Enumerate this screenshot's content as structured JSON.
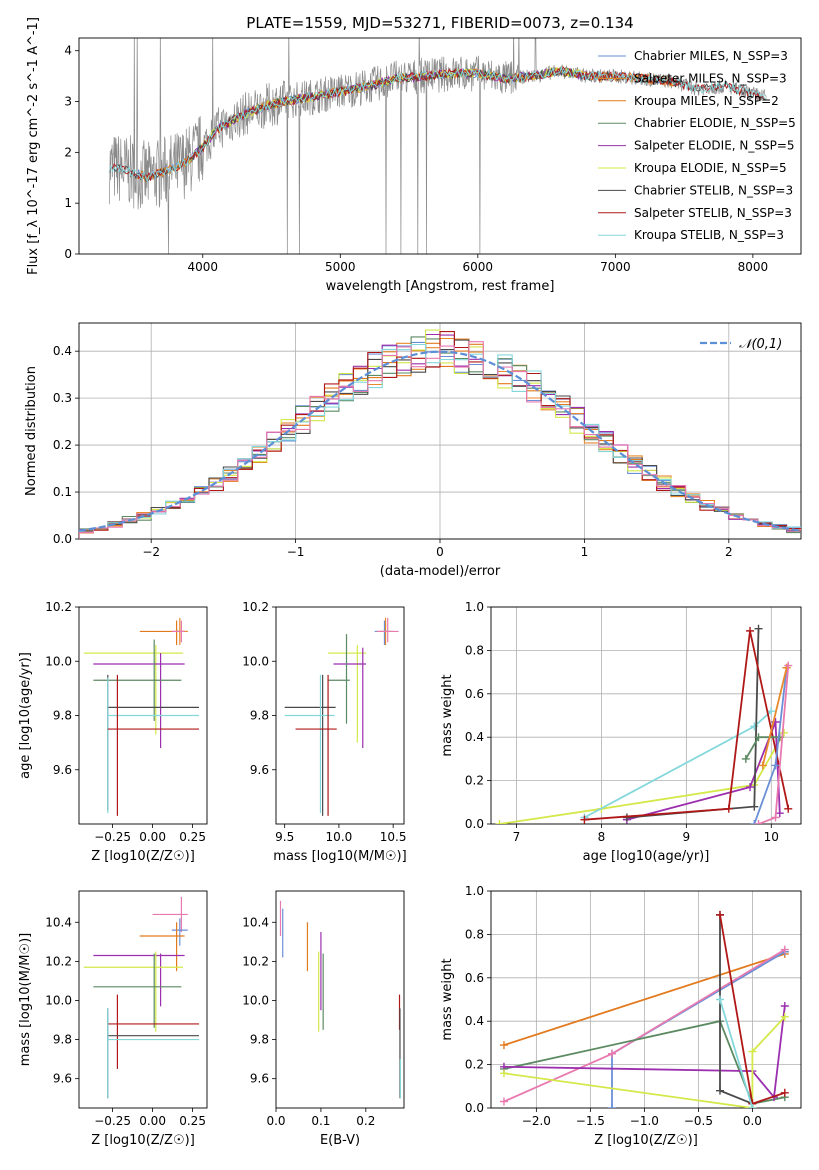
{
  "figure_title": "PLATE=1559, MJD=53271, FIBERID=0073, z=0.134",
  "palette": {
    "chabrier_miles": "#6a8fd6",
    "salpeter_miles": "#e8892c",
    "kroupa_miles": "#e27a1e",
    "chabrier_elodie": "#5c8a62",
    "salpeter_elodie": "#9b2fae",
    "kroupa_elodie": "#d4e84a",
    "chabrier_stelib": "#4a4a4a",
    "salpeter_stelib": "#b01818",
    "kroupa_stelib": "#84d8dc",
    "pink": "#e87ab0",
    "spectrum_gray": "#8a8a8a",
    "normal_curve": "#5b8fd6"
  },
  "chart_data": [
    {
      "id": "spectrum",
      "type": "line",
      "title": "",
      "xlabel": "wavelength [Angstrom, rest frame]",
      "ylabel": "Flux [f_λ 10^-17 erg cm^-2 s^-1 A^-1]",
      "xlim": [
        3100,
        8350
      ],
      "ylim": [
        0,
        4.25
      ],
      "xticks": [
        4000,
        5000,
        6000,
        7000,
        8000
      ],
      "yticks": [
        0,
        1,
        2,
        3,
        4
      ],
      "grid": false,
      "legend_position": "right",
      "legend": [
        {
          "label": "Chabrier MILES, N_SSP=3",
          "color_key": "chabrier_miles"
        },
        {
          "label": "Salpeter MILES, N_SSP=3",
          "color_key": "salpeter_miles"
        },
        {
          "label": "Kroupa MILES, N_SSP=2",
          "color_key": "kroupa_miles"
        },
        {
          "label": "Chabrier ELODIE, N_SSP=5",
          "color_key": "chabrier_elodie"
        },
        {
          "label": "Salpeter ELODIE, N_SSP=5",
          "color_key": "salpeter_elodie"
        },
        {
          "label": "Kroupa ELODIE, N_SSP=5",
          "color_key": "kroupa_elodie"
        },
        {
          "label": "Chabrier STELIB, N_SSP=3",
          "color_key": "chabrier_stelib"
        },
        {
          "label": "Salpeter STELIB, N_SSP=3",
          "color_key": "salpeter_stelib"
        },
        {
          "label": "Kroupa STELIB, N_SSP=3",
          "color_key": "kroupa_stelib"
        }
      ],
      "continuum": {
        "x": [
          3320,
          3400,
          3500,
          3600,
          3700,
          3800,
          3900,
          4000,
          4100,
          4200,
          4300,
          4400,
          4500,
          4600,
          4700,
          4800,
          5000,
          5200,
          5400,
          5600,
          5800,
          6000,
          6200,
          6400,
          6600,
          6800,
          7000,
          7200,
          7400,
          7600,
          7800,
          8000,
          8100
        ],
        "y": [
          1.7,
          1.68,
          1.6,
          1.5,
          1.6,
          1.7,
          1.85,
          2.1,
          2.45,
          2.6,
          2.75,
          2.85,
          2.95,
          3.0,
          3.05,
          3.1,
          3.2,
          3.3,
          3.45,
          3.5,
          3.55,
          3.55,
          3.45,
          3.5,
          3.6,
          3.5,
          3.5,
          3.45,
          3.4,
          3.25,
          3.3,
          3.15,
          3.1
        ]
      }
    },
    {
      "id": "residuals",
      "type": "line",
      "title": "",
      "xlabel": "(data-model)/error",
      "ylabel": "Normed distribution",
      "xlim": [
        -2.5,
        2.5
      ],
      "ylim": [
        0,
        0.46
      ],
      "xticks": [
        -2,
        -1,
        0,
        1,
        2
      ],
      "yticks": [
        0.0,
        0.1,
        0.2,
        0.3,
        0.4
      ],
      "grid": true,
      "legend_position": "top-right",
      "legend": [
        {
          "label": "𝒩(0,1)",
          "style": "dashed",
          "color_key": "normal_curve"
        }
      ],
      "bin_edges": [
        -2.5,
        2.5
      ],
      "n_bins": 50
    },
    {
      "id": "age_vs_Z",
      "type": "scatter",
      "xlabel": "Z [log10(Z/Z☉)]",
      "ylabel": "age  [log10(age/yr)]",
      "xlim": [
        -0.46,
        0.34
      ],
      "ylim": [
        9.4,
        10.2
      ],
      "xticks": [
        -0.25,
        0.0,
        0.25
      ],
      "xticklabels": [
        "−0.25",
        "0.00",
        "0.25"
      ],
      "yticks": [
        9.6,
        9.8,
        10.0,
        10.2
      ],
      "yticklabels": [
        "9.6",
        "9.8",
        "10.0",
        "10.2"
      ],
      "points": [
        {
          "x": 0.17,
          "y": 10.11,
          "xlo": 0.14,
          "xhi": 0.22,
          "ylo": 10.06,
          "yhi": 10.16,
          "color_key": "salpeter_miles"
        },
        {
          "x": 0.15,
          "y": 10.11,
          "xlo": -0.08,
          "xhi": 0.2,
          "ylo": 10.06,
          "yhi": 10.15,
          "color_key": "kroupa_miles"
        },
        {
          "x": 0.18,
          "y": 10.11,
          "xlo": 0.12,
          "xhi": 0.2,
          "ylo": 10.07,
          "yhi": 10.15,
          "color_key": "pink"
        },
        {
          "x": 0.02,
          "y": 10.03,
          "xlo": -0.43,
          "xhi": 0.19,
          "ylo": 9.73,
          "yhi": 10.06,
          "color_key": "kroupa_elodie"
        },
        {
          "x": 0.05,
          "y": 9.99,
          "xlo": -0.37,
          "xhi": 0.2,
          "ylo": 9.68,
          "yhi": 10.03,
          "color_key": "salpeter_elodie"
        },
        {
          "x": 0.01,
          "y": 9.93,
          "xlo": -0.37,
          "xhi": 0.18,
          "ylo": 9.78,
          "yhi": 10.08,
          "color_key": "chabrier_elodie"
        },
        {
          "x": -0.28,
          "y": 9.83,
          "xlo": -0.28,
          "xhi": 0.29,
          "ylo": 9.45,
          "yhi": 9.95,
          "color_key": "chabrier_stelib"
        },
        {
          "x": -0.28,
          "y": 9.8,
          "xlo": -0.28,
          "xhi": 0.29,
          "ylo": 9.44,
          "yhi": 9.94,
          "color_key": "kroupa_stelib"
        },
        {
          "x": -0.22,
          "y": 9.75,
          "xlo": -0.28,
          "xhi": 0.29,
          "ylo": 9.43,
          "yhi": 9.95,
          "color_key": "salpeter_stelib"
        }
      ]
    },
    {
      "id": "age_vs_mass",
      "type": "scatter",
      "xlabel": "mass [log10(M/M☉)]",
      "ylabel": "",
      "xlim": [
        9.42,
        10.6
      ],
      "ylim": [
        9.4,
        10.2
      ],
      "xticks": [
        9.5,
        10.0,
        10.5
      ],
      "xticklabels": [
        "9.5",
        "10.0",
        "10.5"
      ],
      "yticks": [
        9.6,
        9.8,
        10.0,
        10.2
      ],
      "yticklabels": [
        "9.6",
        "9.8",
        "10.0",
        "10.2"
      ],
      "points": [
        {
          "x": 10.42,
          "y": 10.11,
          "xlo": 10.33,
          "xhi": 10.48,
          "ylo": 10.06,
          "yhi": 10.15,
          "color_key": "chabrier_miles"
        },
        {
          "x": 10.43,
          "y": 10.11,
          "xlo": 10.35,
          "xhi": 10.5,
          "ylo": 10.06,
          "yhi": 10.16,
          "color_key": "salpeter_miles"
        },
        {
          "x": 10.45,
          "y": 10.11,
          "xlo": 10.35,
          "xhi": 10.55,
          "ylo": 10.07,
          "yhi": 10.16,
          "color_key": "pink"
        },
        {
          "x": 10.17,
          "y": 10.03,
          "xlo": 9.9,
          "xhi": 10.25,
          "ylo": 9.7,
          "yhi": 10.06,
          "color_key": "kroupa_elodie"
        },
        {
          "x": 10.22,
          "y": 9.99,
          "xlo": 9.95,
          "xhi": 10.25,
          "ylo": 9.68,
          "yhi": 10.05,
          "color_key": "salpeter_elodie"
        },
        {
          "x": 10.07,
          "y": 9.93,
          "xlo": 9.9,
          "xhi": 10.1,
          "ylo": 9.77,
          "yhi": 10.1,
          "color_key": "chabrier_elodie"
        },
        {
          "x": 9.85,
          "y": 9.83,
          "xlo": 9.5,
          "xhi": 9.97,
          "ylo": 9.43,
          "yhi": 9.95,
          "color_key": "chabrier_stelib"
        },
        {
          "x": 9.83,
          "y": 9.8,
          "xlo": 9.5,
          "xhi": 9.96,
          "ylo": 9.44,
          "yhi": 9.95,
          "color_key": "kroupa_stelib"
        },
        {
          "x": 9.9,
          "y": 9.75,
          "xlo": 9.6,
          "xhi": 9.98,
          "ylo": 9.43,
          "yhi": 9.95,
          "color_key": "salpeter_stelib"
        }
      ]
    },
    {
      "id": "weight_vs_age",
      "type": "line",
      "xlabel": "age  [log10(age/yr)]",
      "ylabel": "mass weight",
      "xlim": [
        6.7,
        10.35
      ],
      "ylim": [
        0,
        1.0
      ],
      "xticks": [
        7,
        8,
        9,
        10
      ],
      "yticks": [
        0.0,
        0.2,
        0.4,
        0.6,
        0.8,
        1.0
      ],
      "grid": true,
      "series": [
        {
          "color_key": "kroupa_elodie",
          "x": [
            6.8,
            8.0,
            9.8,
            10.15
          ],
          "y": [
            0.0,
            0.07,
            0.18,
            0.42
          ]
        },
        {
          "color_key": "kroupa_stelib",
          "x": [
            7.8,
            9.8,
            10.0
          ],
          "y": [
            0.03,
            0.45,
            0.52
          ]
        },
        {
          "color_key": "salpeter_elodie",
          "x": [
            8.3,
            9.75,
            10.05,
            10.1
          ],
          "y": [
            0.02,
            0.17,
            0.47,
            0.05
          ]
        },
        {
          "color_key": "chabrier_stelib",
          "x": [
            8.3,
            9.8,
            9.85
          ],
          "y": [
            0.03,
            0.08,
            0.9
          ]
        },
        {
          "color_key": "salpeter_stelib",
          "x": [
            7.8,
            9.5,
            9.75,
            10.2
          ],
          "y": [
            0.02,
            0.07,
            0.89,
            0.07
          ]
        },
        {
          "color_key": "chabrier_elodie",
          "x": [
            9.7,
            9.85,
            10.1
          ],
          "y": [
            0.3,
            0.4,
            0.4
          ]
        },
        {
          "color_key": "chabrier_miles",
          "x": [
            9.8,
            10.05,
            10.18
          ],
          "y": [
            0.0,
            0.27,
            0.72
          ]
        },
        {
          "color_key": "salpeter_miles",
          "x": [
            9.9,
            10.18
          ],
          "y": [
            0.27,
            0.72
          ]
        },
        {
          "color_key": "pink",
          "x": [
            9.85,
            10.05,
            10.2
          ],
          "y": [
            0.0,
            0.03,
            0.73
          ]
        }
      ]
    },
    {
      "id": "mass_vs_Z",
      "type": "scatter",
      "xlabel": "Z [log10(Z/Z☉)]",
      "ylabel": "mass [log10(M/M☉)]",
      "xlim": [
        -0.46,
        0.34
      ],
      "ylim": [
        9.45,
        10.56
      ],
      "xticks": [
        -0.25,
        0.0,
        0.25
      ],
      "xticklabels": [
        "−0.25",
        "0.00",
        "0.25"
      ],
      "yticks": [
        9.6,
        9.8,
        10.0,
        10.2,
        10.4
      ],
      "yticklabels": [
        "9.6",
        "9.8",
        "10.0",
        "10.2",
        "10.4"
      ],
      "points": [
        {
          "x": 0.18,
          "y": 10.44,
          "xlo": 0.0,
          "xhi": 0.22,
          "ylo": 10.35,
          "yhi": 10.53,
          "color_key": "pink"
        },
        {
          "x": 0.17,
          "y": 10.36,
          "xlo": 0.12,
          "xhi": 0.22,
          "ylo": 10.28,
          "yhi": 10.42,
          "color_key": "chabrier_miles"
        },
        {
          "x": 0.15,
          "y": 10.33,
          "xlo": -0.08,
          "xhi": 0.2,
          "ylo": 10.15,
          "yhi": 10.4,
          "color_key": "kroupa_miles"
        },
        {
          "x": 0.05,
          "y": 10.23,
          "xlo": -0.37,
          "xhi": 0.2,
          "ylo": 9.97,
          "yhi": 10.24,
          "color_key": "salpeter_elodie"
        },
        {
          "x": 0.02,
          "y": 10.17,
          "xlo": -0.43,
          "xhi": 0.19,
          "ylo": 9.84,
          "yhi": 10.25,
          "color_key": "kroupa_elodie"
        },
        {
          "x": 0.01,
          "y": 10.07,
          "xlo": -0.37,
          "xhi": 0.18,
          "ylo": 9.86,
          "yhi": 10.24,
          "color_key": "chabrier_elodie"
        },
        {
          "x": -0.22,
          "y": 9.88,
          "xlo": -0.28,
          "xhi": 0.29,
          "ylo": 9.65,
          "yhi": 10.03,
          "color_key": "salpeter_stelib"
        },
        {
          "x": -0.28,
          "y": 9.82,
          "xlo": -0.28,
          "xhi": 0.29,
          "ylo": 9.5,
          "yhi": 9.96,
          "color_key": "chabrier_stelib"
        },
        {
          "x": -0.28,
          "y": 9.8,
          "xlo": -0.28,
          "xhi": 0.29,
          "ylo": 9.5,
          "yhi": 9.96,
          "color_key": "kroupa_stelib"
        }
      ]
    },
    {
      "id": "mass_vs_ebv",
      "type": "scatter",
      "xlabel": "E(B-V)",
      "ylabel": "",
      "xlim": [
        0.0,
        0.285
      ],
      "ylim": [
        9.45,
        10.56
      ],
      "xticks": [
        0.0,
        0.1,
        0.2
      ],
      "xticklabels": [
        "0.0",
        "0.1",
        "0.2"
      ],
      "yticks": [
        9.6,
        9.8,
        10.0,
        10.2,
        10.4
      ],
      "yticklabels": [
        "9.6",
        "9.8",
        "10.0",
        "10.2",
        "10.4"
      ],
      "points": [
        {
          "x": 0.01,
          "y": 10.42,
          "ylo": 10.33,
          "yhi": 10.51,
          "color_key": "pink"
        },
        {
          "x": 0.015,
          "y": 10.34,
          "ylo": 10.22,
          "yhi": 10.47,
          "color_key": "chabrier_miles"
        },
        {
          "x": 0.07,
          "y": 10.25,
          "ylo": 10.15,
          "yhi": 10.4,
          "color_key": "kroupa_miles"
        },
        {
          "x": 0.095,
          "y": 10.1,
          "ylo": 9.84,
          "yhi": 10.25,
          "color_key": "kroupa_elodie"
        },
        {
          "x": 0.1,
          "y": 10.2,
          "ylo": 9.95,
          "yhi": 10.35,
          "color_key": "salpeter_elodie"
        },
        {
          "x": 0.105,
          "y": 10.07,
          "ylo": 9.85,
          "yhi": 10.24,
          "color_key": "chabrier_elodie"
        },
        {
          "x": 0.275,
          "y": 9.95,
          "ylo": 9.85,
          "yhi": 10.03,
          "color_key": "salpeter_stelib"
        },
        {
          "x": 0.276,
          "y": 9.8,
          "ylo": 9.5,
          "yhi": 9.96,
          "color_key": "chabrier_stelib"
        },
        {
          "x": 0.277,
          "y": 9.6,
          "ylo": 9.5,
          "yhi": 9.7,
          "color_key": "kroupa_stelib"
        }
      ]
    },
    {
      "id": "weight_vs_Z",
      "type": "line",
      "xlabel": "Z [log10(Z/Z☉)]",
      "ylabel": "mass weight",
      "xlim": [
        -2.42,
        0.45
      ],
      "ylim": [
        0,
        1.0
      ],
      "xticks": [
        -2.0,
        -1.5,
        -1.0,
        -0.5,
        0.0
      ],
      "xticklabels": [
        "−2.0",
        "−1.5",
        "−1.0",
        "−0.5",
        "0.0"
      ],
      "yticks": [
        0.0,
        0.2,
        0.4,
        0.6,
        0.8,
        1.0
      ],
      "grid": true,
      "series": [
        {
          "color_key": "kroupa_miles",
          "x": [
            -2.3,
            0.3
          ],
          "y": [
            0.29,
            0.71
          ]
        },
        {
          "color_key": "chabrier_miles",
          "x": [
            -1.3,
            -1.3,
            0.3
          ],
          "y": [
            0.0,
            0.25,
            0.72
          ]
        },
        {
          "color_key": "pink",
          "x": [
            -2.3,
            -1.3,
            0.3
          ],
          "y": [
            0.03,
            0.25,
            0.73
          ]
        },
        {
          "color_key": "chabrier_elodie",
          "x": [
            -2.3,
            -0.3,
            0.0,
            0.3
          ],
          "y": [
            0.18,
            0.4,
            0.02,
            0.05
          ]
        },
        {
          "color_key": "salpeter_elodie",
          "x": [
            -2.3,
            0.0,
            0.2,
            0.3
          ],
          "y": [
            0.19,
            0.17,
            0.05,
            0.47
          ]
        },
        {
          "color_key": "kroupa_elodie",
          "x": [
            -2.3,
            0.0,
            0.0,
            0.3
          ],
          "y": [
            0.16,
            0.0,
            0.26,
            0.42
          ]
        },
        {
          "color_key": "chabrier_stelib",
          "x": [
            -0.3,
            -0.3,
            0.0
          ],
          "y": [
            0.89,
            0.08,
            0.02
          ]
        },
        {
          "color_key": "salpeter_stelib",
          "x": [
            -0.3,
            0.0,
            0.3
          ],
          "y": [
            0.89,
            0.02,
            0.07
          ]
        },
        {
          "color_key": "kroupa_stelib",
          "x": [
            -0.3,
            0.0
          ],
          "y": [
            0.5,
            0.0
          ]
        }
      ]
    }
  ]
}
